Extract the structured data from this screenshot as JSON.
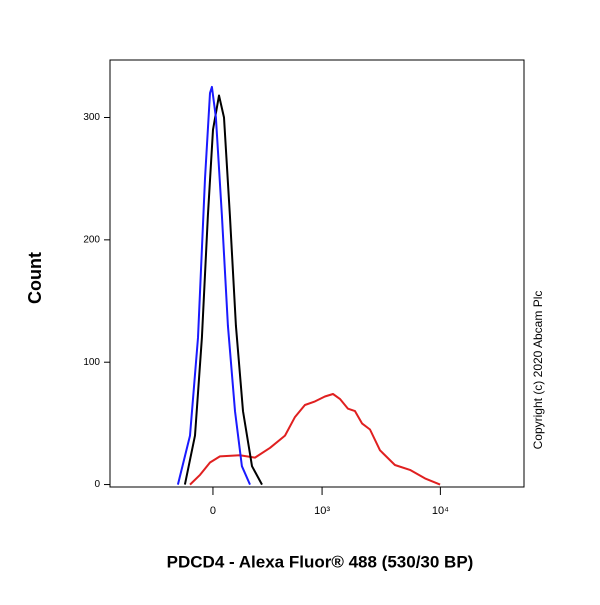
{
  "chart_data": {
    "type": "line",
    "xlabel": "PDCD4 - Alexa Fluor® 488 (530/30 BP)",
    "ylabel": "Count",
    "annotation": "Copyright (c) 2020 Abcam Plc",
    "xscale": "biexponential",
    "xlim": [
      -884,
      50400
    ],
    "xticks": [
      0,
      {
        "value": 1000,
        "label": "10³"
      },
      {
        "value": 10000,
        "label": "10⁴"
      }
    ],
    "ylim": [
      -2,
      347
    ],
    "yticks": [
      0,
      100,
      200,
      300
    ],
    "series": [
      {
        "color": "#1a1aff",
        "x": [
          -180,
          -113,
          -72,
          -38,
          -14,
          -5,
          14,
          43,
          72,
          108,
          145,
          192
        ],
        "values": [
          0,
          40,
          120,
          250,
          320,
          325,
          300,
          220,
          130,
          60,
          15,
          0
        ]
      },
      {
        "color": "#000000",
        "x": [
          -140,
          -87,
          -53,
          -24,
          0,
          29,
          53,
          82,
          113,
          151,
          204,
          270
        ],
        "values": [
          0,
          40,
          120,
          220,
          290,
          318,
          300,
          220,
          130,
          60,
          15,
          0
        ]
      },
      {
        "color": "#e02020",
        "x": [
          -113,
          -62,
          -14,
          33,
          134,
          223,
          331,
          465,
          574,
          708,
          868,
          1058,
          1242,
          1422,
          1665,
          1911,
          2190,
          2558,
          3105,
          4150,
          5552,
          7430,
          9940
        ],
        "values": [
          0,
          8,
          18,
          23,
          24,
          22,
          30,
          40,
          55,
          65,
          68,
          72,
          74,
          70,
          62,
          60,
          50,
          45,
          28,
          16,
          12,
          5,
          0
        ]
      }
    ]
  }
}
